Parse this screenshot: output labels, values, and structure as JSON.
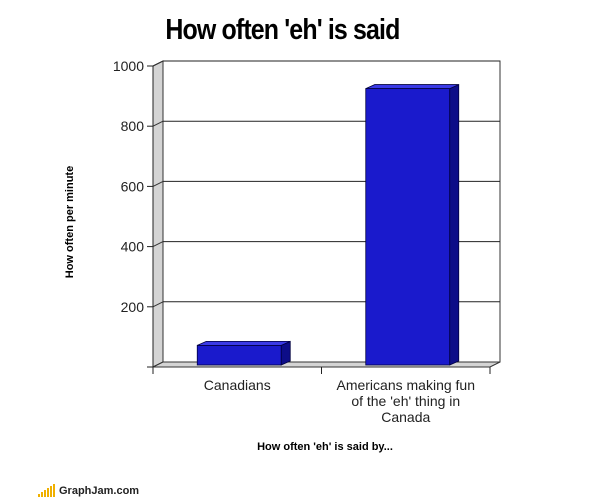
{
  "chart_data": {
    "type": "bar",
    "title": "How often 'eh' is said",
    "xlabel": "How often 'eh' is said by...",
    "ylabel": "How often per minute",
    "categories": [
      "Canadians",
      "Americans making fun of the 'eh' thing in Canada"
    ],
    "category_lines": [
      [
        "Canadians"
      ],
      [
        "Americans making fun",
        "of the 'eh' thing in",
        "Canada"
      ]
    ],
    "values": [
      62,
      915
    ],
    "ylim": [
      0,
      1000
    ],
    "yticks": [
      200,
      400,
      600,
      800,
      1000
    ],
    "grid": true,
    "bar_color": "#1a1acc",
    "bar_side_color": "#0d0d88",
    "bar_top_color": "#3a3ae6"
  },
  "watermark": {
    "text": "GraphJam.com",
    "icon": "signal-bars-icon",
    "color": "#f0b000"
  }
}
